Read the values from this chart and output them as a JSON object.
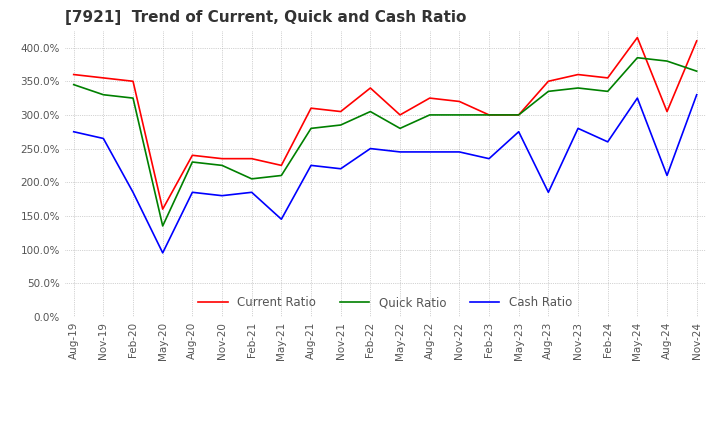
{
  "title": "[7921]  Trend of Current, Quick and Cash Ratio",
  "x_labels": [
    "Aug-19",
    "Nov-19",
    "Feb-20",
    "May-20",
    "Aug-20",
    "Nov-20",
    "Feb-21",
    "May-21",
    "Aug-21",
    "Nov-21",
    "Feb-22",
    "May-22",
    "Aug-22",
    "Nov-22",
    "Feb-23",
    "May-23",
    "Aug-23",
    "Nov-23",
    "Feb-24",
    "May-24",
    "Aug-24",
    "Nov-24"
  ],
  "current_ratio": [
    360,
    355,
    350,
    160,
    240,
    235,
    235,
    225,
    310,
    305,
    340,
    300,
    325,
    320,
    300,
    300,
    350,
    360,
    355,
    415,
    305,
    410
  ],
  "quick_ratio": [
    345,
    330,
    325,
    135,
    230,
    225,
    205,
    210,
    280,
    285,
    305,
    280,
    300,
    300,
    300,
    300,
    335,
    340,
    335,
    385,
    380,
    365
  ],
  "cash_ratio": [
    275,
    265,
    185,
    95,
    185,
    180,
    185,
    145,
    225,
    220,
    250,
    245,
    245,
    245,
    235,
    275,
    185,
    280,
    260,
    325,
    210,
    330
  ],
  "current_color": "#ff0000",
  "quick_color": "#008000",
  "cash_color": "#0000ff",
  "ylim": [
    0,
    425
  ],
  "yticks": [
    0,
    50,
    100,
    150,
    200,
    250,
    300,
    350,
    400
  ],
  "background_color": "#ffffff",
  "grid_color": "#aaaaaa",
  "title_fontsize": 11,
  "tick_fontsize": 7.5,
  "legend_fontsize": 8.5,
  "line_width": 1.2
}
